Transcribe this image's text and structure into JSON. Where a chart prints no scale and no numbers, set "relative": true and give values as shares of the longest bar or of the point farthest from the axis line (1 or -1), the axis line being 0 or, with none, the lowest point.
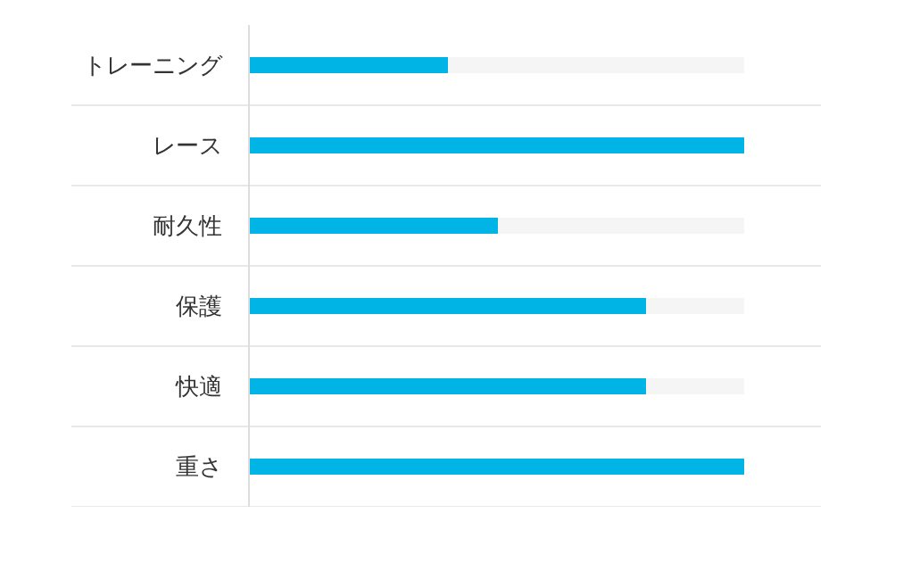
{
  "chart_data": {
    "type": "bar",
    "orientation": "horizontal",
    "relative": true,
    "categories": [
      "トレーニング",
      "レース",
      "耐久性",
      "保護",
      "快適",
      "重さ"
    ],
    "values": [
      0.4,
      1.0,
      0.5,
      0.8,
      0.8,
      1.0
    ],
    "color": "#00b4e6",
    "legend": false
  }
}
